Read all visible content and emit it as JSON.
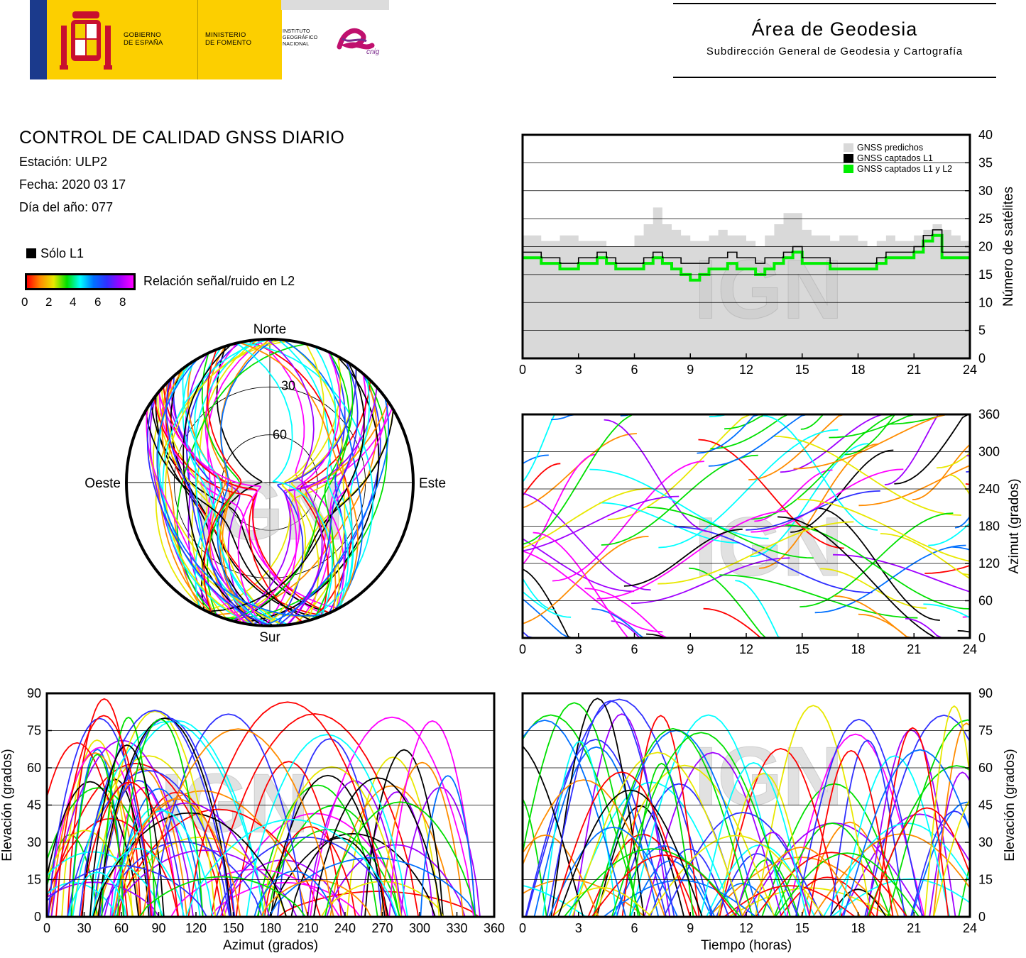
{
  "header": {
    "logo_gobierno": "GOBIERNO\nDE ESPAÑA",
    "logo_ministerio": "MINISTERIO\nDE FOMENTO",
    "logo_ign": "INSTITUTO\nGEOGRÁFICO\nNACIONAL",
    "logo_cnig": "cnig",
    "area_title": "Área de Geodesia",
    "area_subtitle": "Subdirección General de Geodesia y Cartografía"
  },
  "info": {
    "title": "CONTROL DE CALIDAD GNSS DIARIO",
    "station": "Estación: ULP2",
    "date": "Fecha: 2020 03 17",
    "doy": "Día del año: 077"
  },
  "legend": {
    "solo_l1": "Sólo L1",
    "snr_label": "Relación señal/ruido en L2",
    "snr_ticks": [
      "0",
      "2",
      "4",
      "6",
      "8"
    ]
  },
  "colors": {
    "snr_scale": [
      "#ff0000",
      "#ff8c00",
      "#e8e800",
      "#00e000",
      "#00ffff",
      "#0070ff",
      "#3030ff",
      "#a000ff",
      "#ff00ff"
    ],
    "l1_only": "#000000",
    "predicted": "#d9d9d9",
    "tracked_l1l2": "#00ee00",
    "watermark": "#c8c8c8"
  },
  "watermark": "IGN",
  "chart_data": [
    {
      "id": "satellite-count",
      "type": "line",
      "xlim": [
        0,
        24
      ],
      "xticks": [
        "0",
        "3",
        "6",
        "9",
        "12",
        "15",
        "18",
        "21",
        "24"
      ],
      "ylim": [
        0,
        40
      ],
      "yticks": [
        "0",
        "5",
        "10",
        "15",
        "20",
        "25",
        "30",
        "35",
        "40"
      ],
      "ylabel": "Número de satélites",
      "grid": true,
      "legend_position": "top-right",
      "x": [
        0,
        1,
        2,
        3,
        4,
        4.5,
        5,
        6,
        6.5,
        7,
        7.5,
        8,
        8.5,
        9,
        9.5,
        10,
        10.5,
        11,
        11.5,
        12,
        12.5,
        13,
        13.5,
        14,
        14.5,
        15,
        15.5,
        16,
        16.5,
        17,
        17.5,
        18,
        18.5,
        19,
        19.5,
        20,
        20.5,
        21,
        21.5,
        22,
        22.5,
        23,
        23.5,
        24
      ],
      "series": [
        {
          "name": "GNSS predichos",
          "values": [
            22,
            21,
            22,
            21,
            21,
            20,
            20,
            22,
            24,
            27,
            24,
            23,
            22,
            21,
            21,
            22,
            23,
            22,
            22,
            21,
            20,
            22,
            24,
            26,
            26,
            23,
            22,
            22,
            21,
            22,
            22,
            21,
            20,
            21,
            22,
            21,
            21,
            22,
            23,
            24,
            23,
            22,
            21,
            22
          ]
        },
        {
          "name": "GNSS captados L1",
          "values": [
            19,
            18,
            17,
            18,
            19,
            18,
            17,
            17,
            18,
            19,
            18,
            18,
            17,
            17,
            17,
            18,
            18,
            19,
            18,
            18,
            17,
            18,
            18,
            19,
            20,
            18,
            18,
            18,
            17,
            17,
            17,
            17,
            17,
            18,
            19,
            19,
            19,
            20,
            22,
            23,
            19,
            19,
            19,
            19
          ]
        },
        {
          "name": "GNSS captados L1 y L2",
          "values": [
            18,
            17,
            16,
            17,
            18,
            17,
            16,
            16,
            17,
            18,
            17,
            16,
            15,
            14,
            15,
            16,
            16,
            17,
            16,
            16,
            15,
            16,
            17,
            18,
            19,
            17,
            17,
            17,
            16,
            16,
            16,
            16,
            16,
            17,
            18,
            18,
            18,
            19,
            21,
            22,
            18,
            18,
            18,
            18
          ]
        }
      ]
    },
    {
      "id": "azimuth-vs-time",
      "type": "scatter",
      "xlim": [
        0,
        24
      ],
      "xticks": [
        "0",
        "3",
        "6",
        "9",
        "12",
        "15",
        "18",
        "21",
        "24"
      ],
      "ylim": [
        0,
        360
      ],
      "yticks": [
        "0",
        "60",
        "120",
        "180",
        "240",
        "300",
        "360"
      ],
      "ylabel": "Azimut (grados)",
      "grid": true
    },
    {
      "id": "skyplot",
      "type": "scatter",
      "labels": {
        "north": "Norte",
        "south": "Sur",
        "east": "Este",
        "west": "Oeste"
      },
      "rings": [
        "30",
        "60"
      ]
    },
    {
      "id": "elevation-vs-azimuth",
      "type": "scatter",
      "xlim": [
        0,
        360
      ],
      "xticks": [
        "0",
        "30",
        "60",
        "90",
        "120",
        "150",
        "180",
        "210",
        "240",
        "270",
        "300",
        "330",
        "360"
      ],
      "xlabel": "Azimut (grados)",
      "ylim": [
        0,
        90
      ],
      "yticks": [
        "0",
        "15",
        "30",
        "45",
        "60",
        "75",
        "90"
      ],
      "ylabel": "Elevación (grados)",
      "grid": true
    },
    {
      "id": "elevation-vs-time",
      "type": "line",
      "xlim": [
        0,
        24
      ],
      "xticks": [
        "0",
        "3",
        "6",
        "9",
        "12",
        "15",
        "18",
        "21",
        "24"
      ],
      "xlabel": "Tiempo (horas)",
      "ylim": [
        0,
        90
      ],
      "yticks": [
        "0",
        "15",
        "30",
        "45",
        "60",
        "75",
        "90"
      ],
      "ylabel": "Elevación (grados)",
      "grid": true
    }
  ]
}
